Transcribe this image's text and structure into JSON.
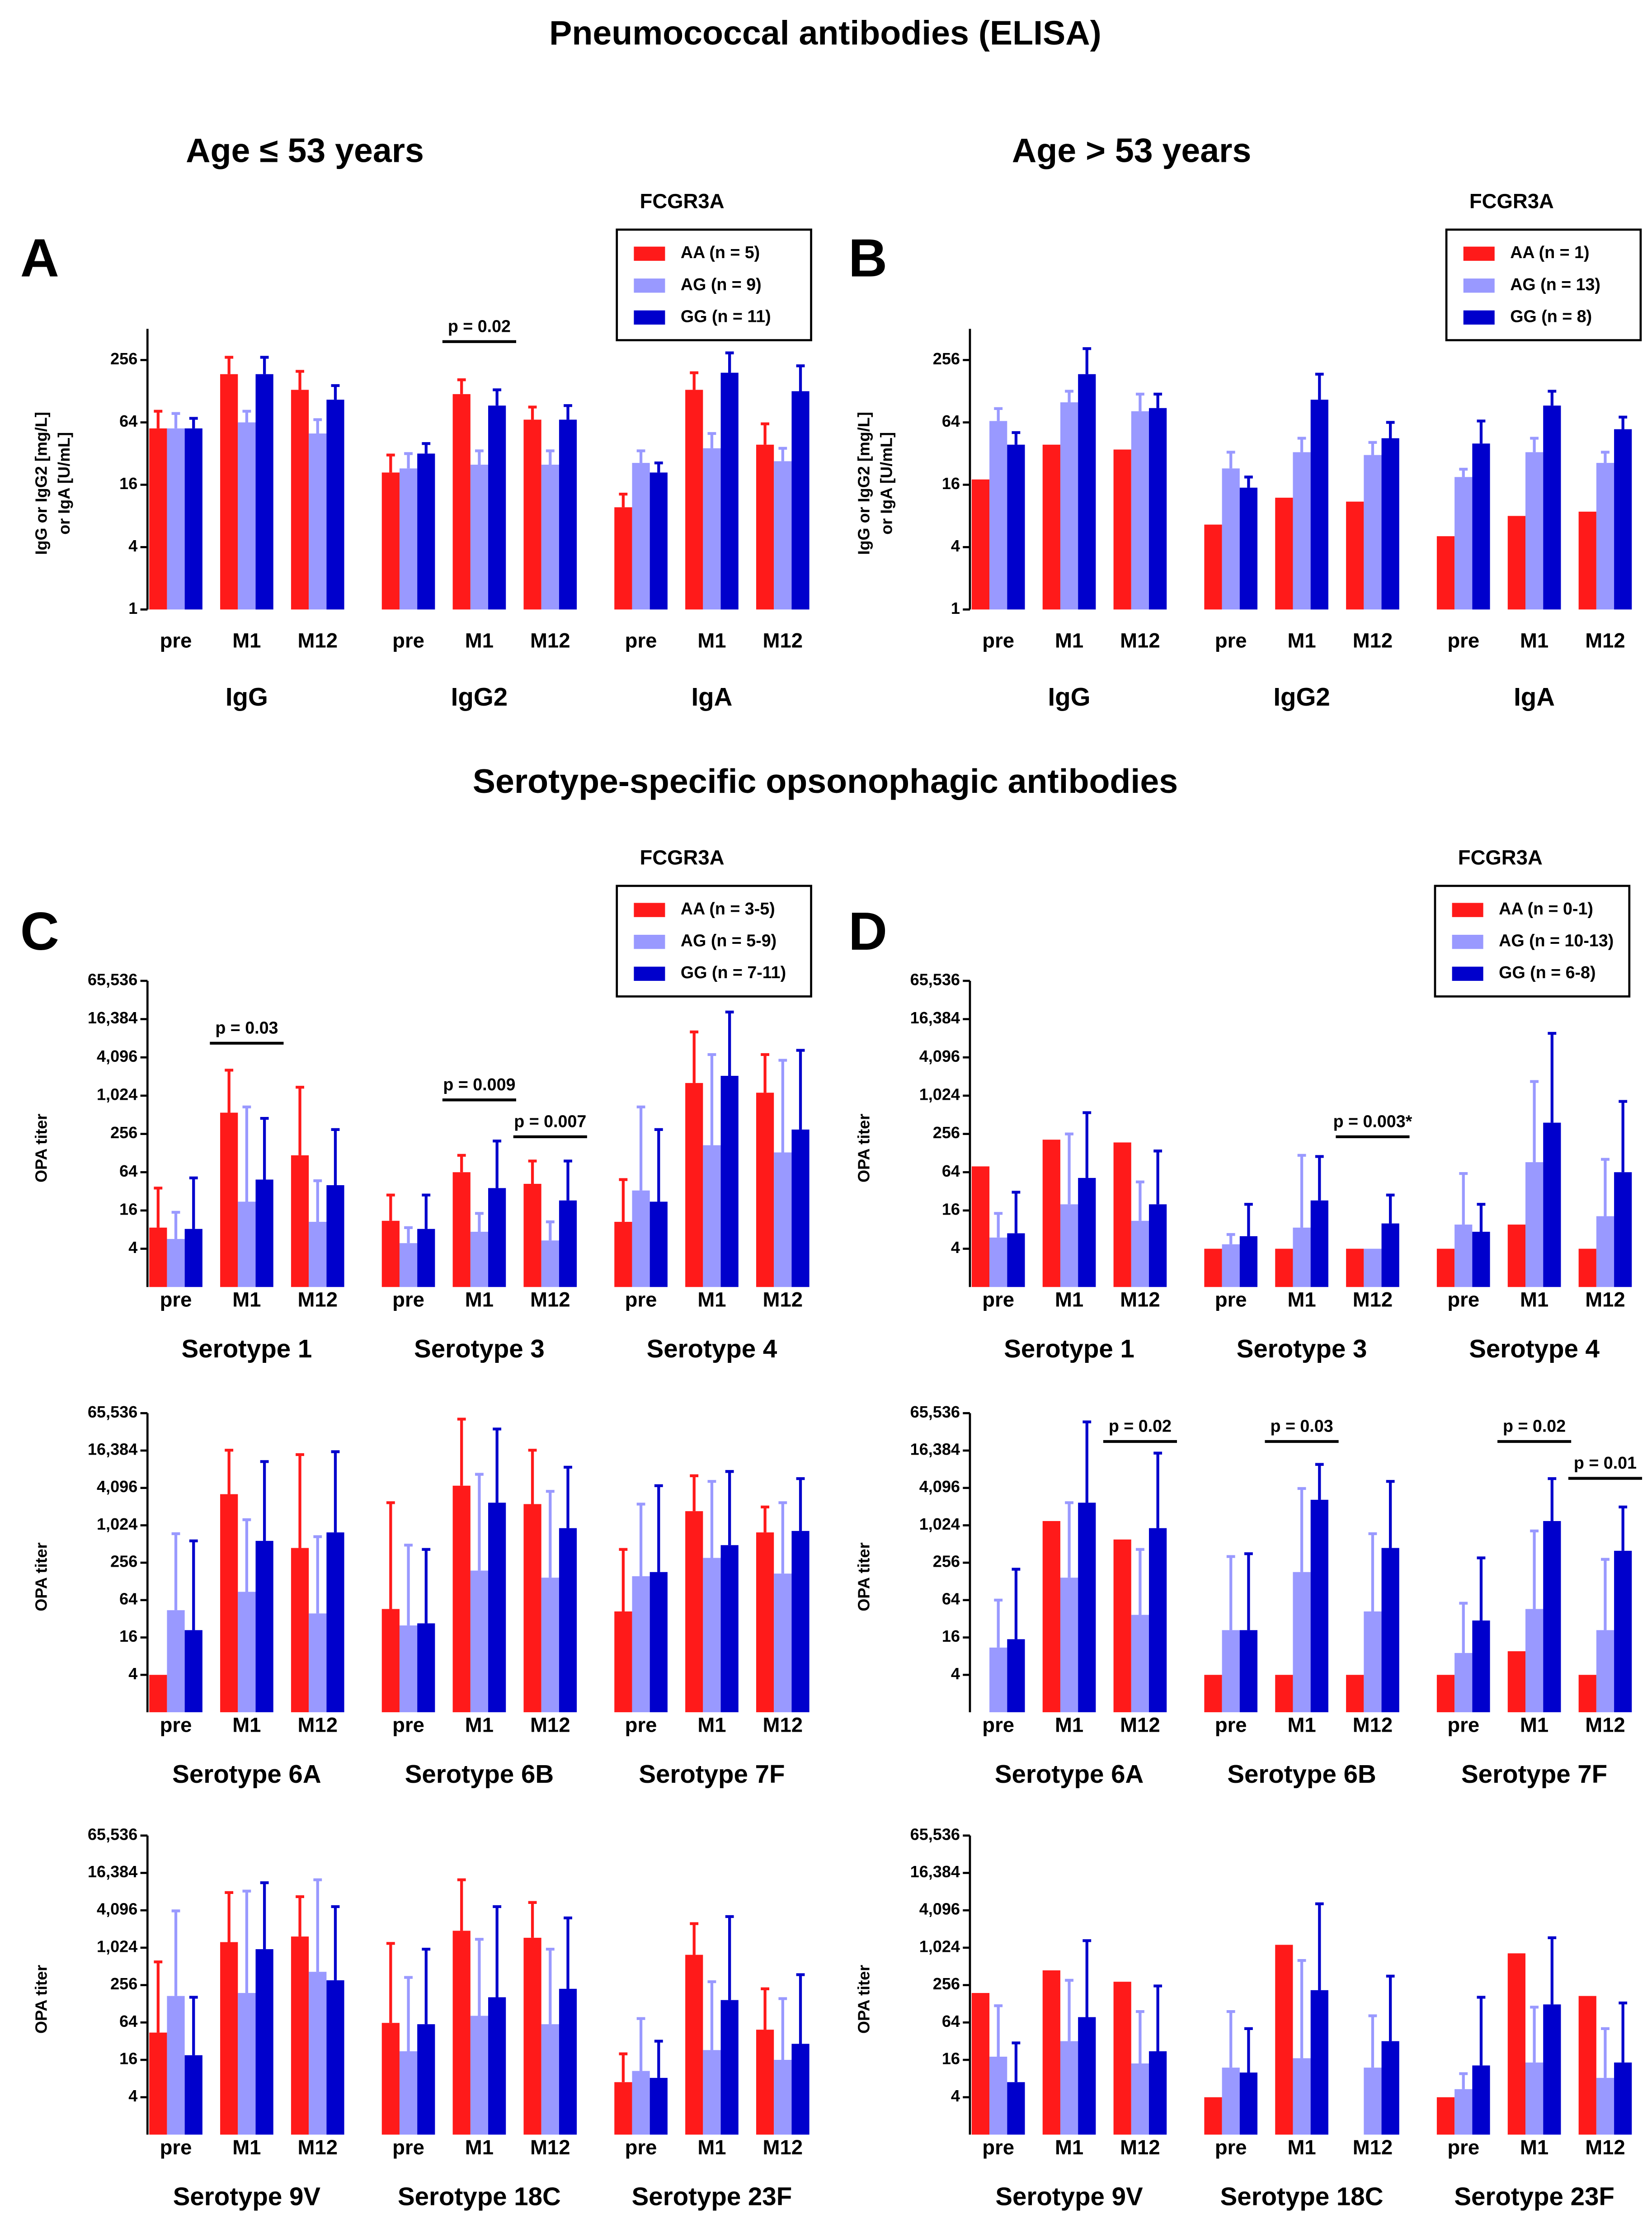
{
  "headings": {
    "title": "Pneumococcal antibodies (ELISA)",
    "age_left": "Age ≤ 53 years",
    "age_right": "Age > 53 years",
    "section_title": "Serotype-specific opsonophagic antibodies"
  },
  "chart_data": [
    {
      "type": "bar",
      "panel": "A",
      "log_base": 2,
      "ylabel": [
        "IgG or IgG2 [mg/L]",
        "or IgA [U/mL]"
      ],
      "ylim": [
        1,
        512
      ],
      "yticks": [
        1,
        4,
        16,
        64,
        256
      ],
      "legend_title": "FCGR3A",
      "groups": [
        "IgG",
        "IgG2",
        "IgA"
      ],
      "categories": [
        "pre",
        "M1",
        "M12",
        "pre",
        "M1",
        "M12",
        "pre",
        "M1",
        "M12"
      ],
      "series": [
        {
          "name": "AA (n = 5)",
          "color": "#ff1a1a",
          "values": [
            56,
            187,
            132,
            21,
            120,
            68,
            9.7,
            132,
            39
          ],
          "errors": [
            26,
            85,
            67,
            10,
            45,
            22,
            3.3,
            61,
            23
          ]
        },
        {
          "name": "AG (n = 9)",
          "color": "#9999ff",
          "values": [
            56,
            64,
            50,
            23,
            25,
            25,
            26,
            36,
            27
          ],
          "errors": [
            22,
            18,
            18,
            9,
            9,
            9,
            8,
            14,
            9
          ]
        },
        {
          "name": "GG (n = 11)",
          "color": "#0000cc",
          "values": [
            56,
            187,
            106,
            32,
            93,
            68,
            21,
            193,
            128
          ],
          "errors": [
            14,
            85,
            39,
            8,
            39,
            25,
            5,
            107,
            97
          ]
        }
      ],
      "annotations": [
        "p = 0.02"
      ]
    },
    {
      "type": "bar",
      "panel": "B",
      "log_base": 2,
      "ylabel": [
        "IgG or IgG2 [mg/L]",
        "or IgA [U/mL]"
      ],
      "ylim": [
        1,
        512
      ],
      "yticks": [
        1,
        4,
        16,
        64,
        256
      ],
      "legend_title": "FCGR3A",
      "groups": [
        "IgG",
        "IgG2",
        "IgA"
      ],
      "categories": [
        "pre",
        "M1",
        "M12",
        "pre",
        "M1",
        "M12",
        "pre",
        "M1",
        "M12"
      ],
      "series": [
        {
          "name": "AA (n = 1)",
          "color": "#ff1a1a",
          "values": [
            18,
            39,
            35,
            6.6,
            12,
            11,
            5.1,
            8,
            8.8
          ]
        },
        {
          "name": "AG (n = 13)",
          "color": "#9999ff",
          "values": [
            66,
            100,
            82,
            23,
            33,
            31,
            19,
            33,
            26
          ],
          "errors": [
            21,
            28,
            38,
            10,
            12,
            10,
            3.6,
            12,
            7
          ]
        },
        {
          "name": "GG (n = 8)",
          "color": "#0000cc",
          "values": [
            39,
            187,
            88,
            15,
            106,
            45,
            40,
            93,
            55
          ],
          "errors": [
            12,
            143,
            32,
            4,
            81,
            19,
            26,
            35,
            17
          ]
        }
      ]
    },
    {
      "type": "bar",
      "panel": "C",
      "log_base": 2,
      "ylabel": "OPA titer",
      "ylim": [
        1,
        65536
      ],
      "yticks": [
        4,
        16,
        64,
        256,
        {
          "value": 1024,
          "label": "1,024"
        },
        {
          "value": 4096,
          "label": "4,096"
        },
        {
          "value": 16384,
          "label": "16,384"
        },
        {
          "value": 65536,
          "label": "65,536"
        }
      ],
      "legend_title": "FCGR3A",
      "groups": [
        "Serotype 1",
        "Serotype 3",
        "Serotype 4"
      ],
      "categories": [
        "pre",
        "M1",
        "M12",
        "pre",
        "M1",
        "M12",
        "pre",
        "M1",
        "M12"
      ],
      "series": [
        {
          "name": "AA (n = 3-5)",
          "color": "#ff1a1a",
          "values": [
            8.6,
            553,
            118,
            11,
            64,
            42,
            10.6,
            1620,
            1140
          ],
          "errors": [
            27.4,
            2027,
            1272,
            17,
            54,
            54,
            38.4,
            8680,
            3400
          ]
        },
        {
          "name": "AG (n = 5-9)",
          "color": "#9999ff",
          "values": [
            5.7,
            22,
            10.6,
            4.9,
            7.4,
            5.4,
            33,
            170,
            131
          ],
          "errors": [
            9.3,
            658,
            36.4,
            3.7,
            7,
            5.2,
            647,
            4370,
            3559
          ]
        },
        {
          "name": "GG (n = 7-11)",
          "color": "#0000cc",
          "values": [
            8.2,
            49,
            40,
            8.2,
            36,
            23,
            22,
            2100,
            300
          ],
          "errors": [
            43.8,
            401,
            260,
            19.8,
            162,
            73,
            278,
            19100,
            4990
          ]
        }
      ],
      "annotations": [
        "p = 0.03",
        "p = 0.009",
        "p = 0.007"
      ]
    },
    {
      "type": "bar",
      "log_base": 2,
      "ylabel": "OPA titer",
      "ylim": [
        1,
        65536
      ],
      "yticks": [
        4,
        16,
        64,
        256,
        {
          "value": 1024,
          "label": "1,024"
        },
        {
          "value": 4096,
          "label": "4,096"
        },
        {
          "value": 16384,
          "label": "16,384"
        },
        {
          "value": 65536,
          "label": "65,536"
        }
      ],
      "groups": [
        "Serotype 6A",
        "Serotype 6B",
        "Serotype 7F"
      ],
      "categories": [
        "pre",
        "M1",
        "M12",
        "pre",
        "M1",
        "M12",
        "pre",
        "M1",
        "M12"
      ],
      "series": [
        {
          "color": "#ff1a1a",
          "values": [
            4,
            3250,
            442,
            46,
            4450,
            2250,
            42,
            1730,
            787
          ],
          "errors": [
            null,
            13350,
            13658,
            2324,
            48050,
            14350,
            377,
            4700,
            1233
          ]
        },
        {
          "color": "#9999ff",
          "values": [
            44,
            87,
            39,
            25,
            191,
            147,
            155,
            306,
            171
          ],
          "errors": [
            706,
            1173,
            633,
            466,
            6599,
            3463,
            2095,
            4914,
            2199
          ]
        },
        {
          "color": "#0000cc",
          "values": [
            21,
            575,
            787,
            27,
            2370,
            922,
            181,
            491,
            831
          ],
          "errors": [
            554,
            10325,
            14913,
            392,
            34030,
            7918,
            4269,
            7049,
            4959
          ]
        }
      ]
    },
    {
      "type": "bar",
      "log_base": 2,
      "ylabel": "OPA titer",
      "ylim": [
        1,
        65536
      ],
      "yticks": [
        4,
        16,
        64,
        256,
        {
          "value": 1024,
          "label": "1,024"
        },
        {
          "value": 4096,
          "label": "4,096"
        },
        {
          "value": 16384,
          "label": "16,384"
        },
        {
          "value": 65536,
          "label": "65,536"
        }
      ],
      "groups": [
        "Serotype 9V",
        "Serotype 18C",
        "Serotype 23F"
      ],
      "categories": [
        "pre",
        "M1",
        "M12",
        "pre",
        "M1",
        "M12",
        "pre",
        "M1",
        "M12"
      ],
      "series": [
        {
          "color": "#ff1a1a",
          "values": [
            44,
            1260,
            1550,
            63,
            1920,
            1480,
            7,
            787,
            49
          ],
          "errors": [
            561,
            6660,
            5240,
            1137,
            10780,
            4000,
            13,
            1713,
            174
          ]
        },
        {
          "color": "#9999ff",
          "values": [
            171,
            191,
            419,
            22,
            82,
            60,
            10.6,
            23,
            16
          ],
          "errors": [
            3839,
            8169,
            12281,
            318,
            1318,
            910,
            63.4,
            267,
            139
          ]
        },
        {
          "color": "#0000cc",
          "values": [
            19,
            970,
            306,
            60,
            163,
            223,
            8.2,
            147,
            29
          ],
          "errors": [
            144,
            10430,
            4394,
            910,
            4537,
            2867,
            23.8,
            3103,
            348
          ]
        }
      ]
    },
    {
      "type": "bar",
      "panel": "D",
      "log_base": 2,
      "ylabel": "OPA titer",
      "ylim": [
        1,
        65536
      ],
      "yticks": [
        4,
        16,
        64,
        256,
        {
          "value": 1024,
          "label": "1,024"
        },
        {
          "value": 4096,
          "label": "4,096"
        },
        {
          "value": 16384,
          "label": "16,384"
        },
        {
          "value": 65536,
          "label": "65,536"
        }
      ],
      "legend_title": "FCGR3A",
      "groups": [
        "Serotype 1",
        "Serotype 3",
        "Serotype 4"
      ],
      "categories": [
        "pre",
        "M1",
        "M12",
        "pre",
        "M1",
        "M12",
        "pre",
        "M1",
        "M12"
      ],
      "series": [
        {
          "name": "AA (n = 0-1)",
          "color": "#ff1a1a",
          "values": [
            79,
            208,
            188,
            4,
            4,
            4,
            4,
            9.6,
            4
          ]
        },
        {
          "name": "AG (n = 10-13)",
          "color": "#9999ff",
          "values": [
            6,
            20,
            11,
            4.7,
            8.6,
            4,
            9.6,
            92,
            13
          ],
          "errors": [
            8.4,
            236,
            34,
            2,
            109.4,
            null,
            51.4,
            1618,
            89
          ]
        },
        {
          "name": "GG (n = 6-8)",
          "color": "#0000cc",
          "values": [
            7,
            52,
            20,
            6.3,
            23,
            10,
            7.4,
            385,
            64
          ],
          "errors": [
            24,
            501,
            118,
            13.7,
            90,
            18,
            12.6,
            9415,
            767
          ]
        }
      ],
      "annotations": [
        "p = 0.003*"
      ]
    },
    {
      "type": "bar",
      "log_base": 2,
      "ylabel": "OPA titer",
      "ylim": [
        1,
        65536
      ],
      "yticks": [
        4,
        16,
        64,
        256,
        {
          "value": 1024,
          "label": "1,024"
        },
        {
          "value": 4096,
          "label": "4,096"
        },
        {
          "value": 16384,
          "label": "16,384"
        },
        {
          "value": 65536,
          "label": "65,536"
        }
      ],
      "groups": [
        "Serotype 6A",
        "Serotype 6B",
        "Serotype 7F"
      ],
      "categories": [
        "pre",
        "M1",
        "M12",
        "pre",
        "M1",
        "M12",
        "pre",
        "M1",
        "M12"
      ],
      "series": [
        {
          "color": "#ff1a1a",
          "values": [
            null,
            1200,
            605,
            4,
            4,
            4,
            4,
            9.6,
            4
          ]
        },
        {
          "color": "#9999ff",
          "values": [
            11,
            147,
            37,
            21,
            181,
            42,
            9,
            46,
            21
          ],
          "errors": [
            53,
            2223,
            382,
            301,
            3829,
            708,
            48,
            785,
            269
          ]
        },
        {
          "color": "#0000cc",
          "values": [
            15,
            2370,
            922,
            21,
            2640,
            442,
            30,
            1200,
            398
          ],
          "errors": [
            186,
            45030,
            13978,
            336,
            7160,
            4778,
            276,
            4590,
            1622
          ]
        }
      ],
      "annotations": [
        "p = 0.02",
        "p = 0.03",
        "p = 0.02",
        "p = 0.01"
      ]
    },
    {
      "type": "bar",
      "log_base": 2,
      "ylabel": "OPA titer",
      "ylim": [
        1,
        65536
      ],
      "yticks": [
        4,
        16,
        64,
        256,
        {
          "value": 1024,
          "label": "1,024"
        },
        {
          "value": 4096,
          "label": "4,096"
        },
        {
          "value": 16384,
          "label": "16,384"
        },
        {
          "value": 65536,
          "label": "65,536"
        }
      ],
      "groups": [
        "Serotype 9V",
        "Serotype 18C",
        "Serotype 23F"
      ],
      "categories": [
        "pre",
        "M1",
        "M12",
        "pre",
        "M1",
        "M12",
        "pre",
        "M1",
        "M12"
      ],
      "series": [
        {
          "color": "#ff1a1a",
          "values": [
            191,
            442,
            290,
            4,
            1140,
            null,
            4,
            831,
            171
          ]
        },
        {
          "color": "#9999ff",
          "values": [
            18,
            32,
            14,
            12,
            17,
            12,
            5.4,
            14.5,
            8.2
          ],
          "errors": [
            101,
            274,
            82,
            84,
            621,
            70,
            4.2,
            98.5,
            42.8
          ]
        },
        {
          "color": "#0000cc",
          "values": [
            7,
            78,
            22,
            10,
            212,
            32,
            13,
            125,
            14.5
          ],
          "errors": [
            23,
            1252,
            226,
            41,
            5008,
            325,
            150,
            1355,
            117.5
          ]
        }
      ]
    }
  ]
}
